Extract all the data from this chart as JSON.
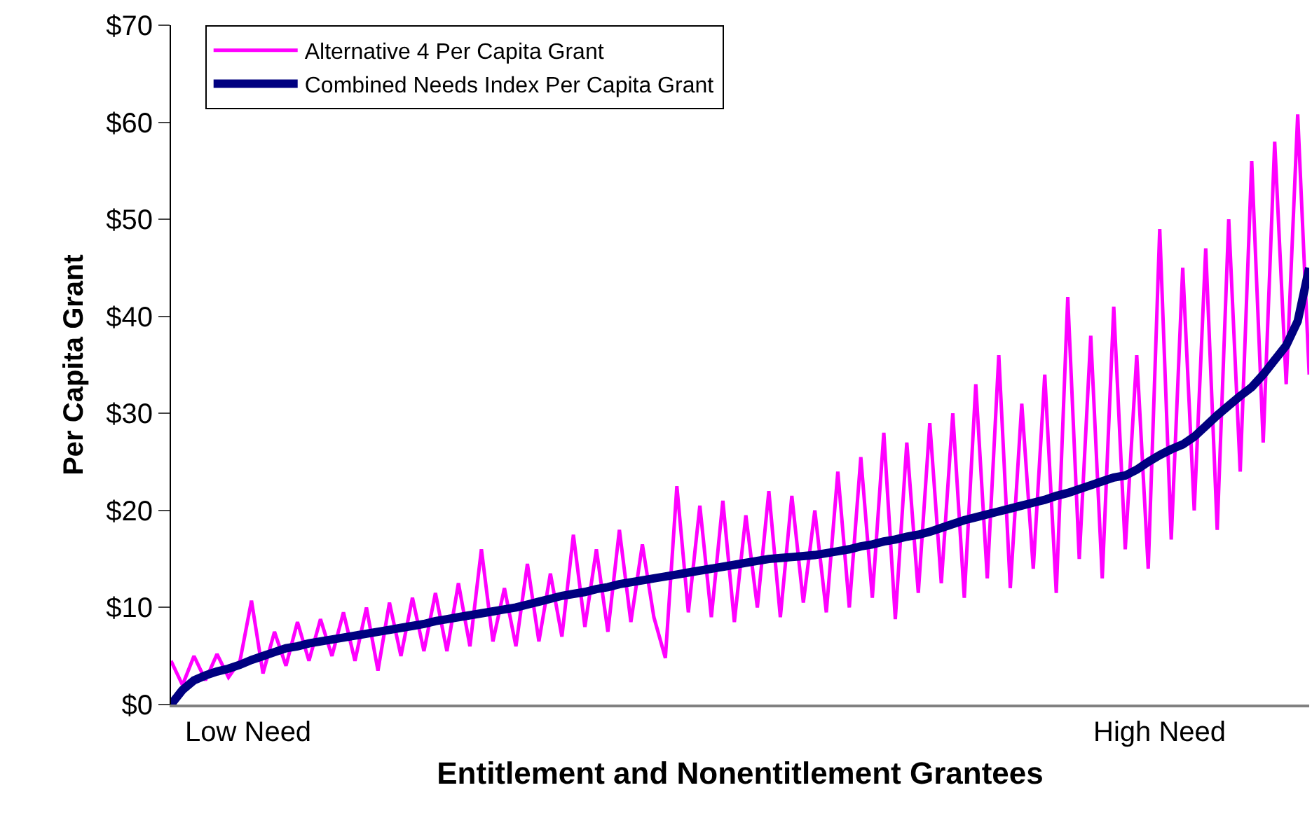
{
  "chart_data": {
    "type": "line",
    "xlabel": "Entitlement and Nonentitlement Grantees",
    "ylabel": "Per Capita Grant",
    "annotations": [
      "Low Need",
      "High Need"
    ],
    "categories": [
      null,
      null,
      null,
      null,
      null,
      null,
      null,
      null,
      null,
      null,
      null,
      null,
      null,
      null,
      null,
      null,
      null,
      null,
      null,
      null,
      null,
      null,
      null,
      null,
      null,
      null,
      null,
      null,
      null,
      null,
      null,
      null,
      null,
      null,
      null,
      null,
      null,
      null,
      null,
      null,
      null,
      null,
      null,
      null,
      null,
      null,
      null,
      null,
      null,
      null,
      null,
      null,
      null,
      null,
      null,
      null,
      null,
      null,
      null,
      null,
      null,
      null,
      null,
      null,
      null,
      null,
      null,
      null,
      null,
      null,
      null,
      null,
      null,
      null,
      null,
      null,
      null,
      null,
      null,
      null,
      null,
      null,
      null,
      null,
      null,
      null,
      null,
      null,
      null,
      null,
      null,
      null,
      null,
      null,
      null,
      null,
      null,
      null,
      null,
      null
    ],
    "series": [
      {
        "name": "Alternative 4 Per Capita Grant",
        "color": "#ff00ff",
        "values": [
          4.5,
          2.0,
          5.0,
          2.5,
          5.2,
          2.8,
          4.5,
          10.7,
          3.2,
          7.5,
          4.0,
          8.5,
          4.5,
          8.8,
          5.0,
          9.5,
          4.5,
          10.0,
          3.5,
          10.5,
          5.0,
          11.0,
          5.5,
          11.5,
          5.5,
          12.5,
          6.0,
          16.0,
          6.5,
          12.0,
          6.0,
          14.5,
          6.5,
          13.5,
          7.0,
          17.5,
          8.0,
          16.0,
          7.5,
          18.0,
          8.5,
          16.5,
          9.0,
          4.8,
          22.5,
          9.5,
          20.5,
          9.0,
          21.0,
          8.5,
          19.5,
          10.0,
          22.0,
          9.0,
          21.5,
          10.5,
          20.0,
          9.5,
          24.0,
          10.0,
          25.5,
          11.0,
          28.0,
          8.8,
          27.0,
          11.5,
          29.0,
          12.5,
          30.0,
          11.0,
          33.0,
          13.0,
          36.0,
          12.0,
          31.0,
          14.0,
          34.0,
          11.5,
          42.0,
          15.0,
          38.0,
          13.0,
          41.0,
          16.0,
          36.0,
          14.0,
          49.0,
          17.0,
          45.0,
          20.0,
          47.0,
          18.0,
          50.0,
          24.0,
          56.0,
          27.0,
          58.0,
          33.0,
          60.8,
          34.0
        ]
      },
      {
        "name": "Combined Needs Index Per Capita Grant",
        "color": "#000080",
        "values": [
          0,
          1.5,
          2.5,
          3,
          3.4,
          3.7,
          4.1,
          4.6,
          5.0,
          5.4,
          5.8,
          6.0,
          6.3,
          6.5,
          6.7,
          6.9,
          7.1,
          7.3,
          7.5,
          7.7,
          7.9,
          8.1,
          8.3,
          8.6,
          8.8,
          9.0,
          9.2,
          9.4,
          9.6,
          9.8,
          10.0,
          10.3,
          10.6,
          10.9,
          11.2,
          11.4,
          11.6,
          11.9,
          12.1,
          12.4,
          12.6,
          12.8,
          13.0,
          13.2,
          13.4,
          13.6,
          13.8,
          14.0,
          14.2,
          14.4,
          14.6,
          14.8,
          15.0,
          15.1,
          15.2,
          15.3,
          15.4,
          15.6,
          15.8,
          16.0,
          16.3,
          16.5,
          16.8,
          17.0,
          17.3,
          17.5,
          17.8,
          18.2,
          18.6,
          19.0,
          19.3,
          19.6,
          19.9,
          20.2,
          20.5,
          20.8,
          21.1,
          21.5,
          21.8,
          22.2,
          22.6,
          23.0,
          23.4,
          23.6,
          24.2,
          25.0,
          25.7,
          26.3,
          26.8,
          27.6,
          28.7,
          29.8,
          30.8,
          31.8,
          32.7,
          34.0,
          35.5,
          37.0,
          39.5,
          45
        ]
      }
    ],
    "ylim": [
      0,
      70
    ],
    "yticks": [
      {
        "value": 0,
        "label": "$0"
      },
      {
        "value": 10,
        "label": "$10"
      },
      {
        "value": 20,
        "label": "$20"
      },
      {
        "value": 30,
        "label": "$30"
      },
      {
        "value": 40,
        "label": "$40"
      },
      {
        "value": 50,
        "label": "$50"
      },
      {
        "value": 60,
        "label": "$60"
      },
      {
        "value": 70,
        "label": "$70"
      }
    ],
    "legend": "top left",
    "marker": "none",
    "line_style": "solid",
    "grid": false
  }
}
